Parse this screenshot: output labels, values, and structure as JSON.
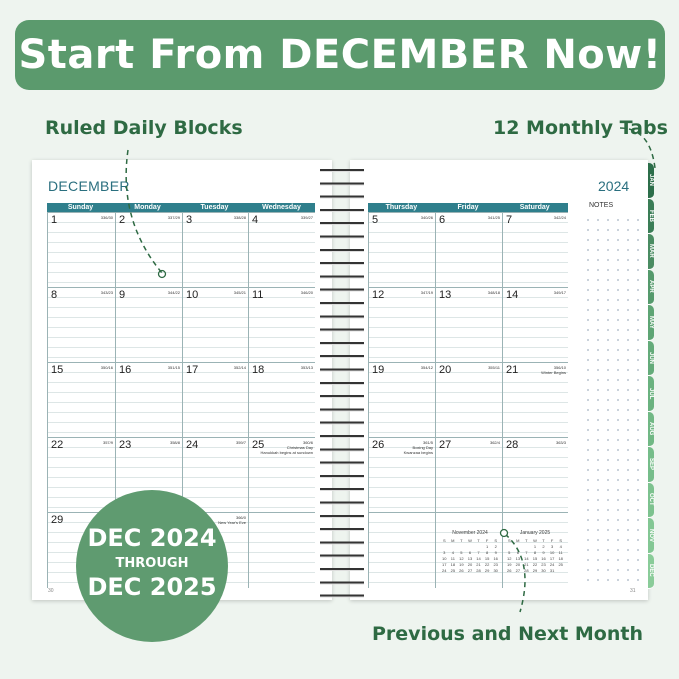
{
  "banner": "Start From DECEMBER Now!",
  "callouts": {
    "ruled": "Ruled Daily Blocks",
    "tabs": "12 Monthly Tabs",
    "months": "Previous and Next Month"
  },
  "planner": {
    "month": "DECEMBER",
    "year": "2024",
    "notes_label": "NOTES",
    "weekdays": [
      "Sunday",
      "Monday",
      "Tuesday",
      "Wednesday",
      "Thursday",
      "Friday",
      "Saturday"
    ],
    "weeks": [
      [
        {
          "d": "1",
          "doy": "336/30"
        },
        {
          "d": "2",
          "doy": "337/29"
        },
        {
          "d": "3",
          "doy": "338/28"
        },
        {
          "d": "4",
          "doy": "339/27"
        },
        {
          "d": "5",
          "doy": "340/26"
        },
        {
          "d": "6",
          "doy": "341/25"
        },
        {
          "d": "7",
          "doy": "342/24"
        }
      ],
      [
        {
          "d": "8",
          "doy": "343/23"
        },
        {
          "d": "9",
          "doy": "344/22"
        },
        {
          "d": "10",
          "doy": "345/21"
        },
        {
          "d": "11",
          "doy": "346/20"
        },
        {
          "d": "12",
          "doy": "347/19"
        },
        {
          "d": "13",
          "doy": "348/18"
        },
        {
          "d": "14",
          "doy": "349/17"
        }
      ],
      [
        {
          "d": "15",
          "doy": "350/16"
        },
        {
          "d": "16",
          "doy": "351/15"
        },
        {
          "d": "17",
          "doy": "352/14"
        },
        {
          "d": "18",
          "doy": "353/13"
        },
        {
          "d": "19",
          "doy": "354/12"
        },
        {
          "d": "20",
          "doy": "355/11"
        },
        {
          "d": "21",
          "doy": "356/10",
          "note": "Winter Begins"
        }
      ],
      [
        {
          "d": "22",
          "doy": "357/9"
        },
        {
          "d": "23",
          "doy": "358/8"
        },
        {
          "d": "24",
          "doy": "359/7"
        },
        {
          "d": "25",
          "doy": "360/6",
          "note": "Christmas Day\nHanukkah begins at sundown"
        },
        {
          "d": "26",
          "doy": "361/5",
          "note": "Boxing Day\nKwanzaa begins"
        },
        {
          "d": "27",
          "doy": "362/4"
        },
        {
          "d": "28",
          "doy": "363/3"
        }
      ],
      [
        {
          "d": "29"
        },
        {},
        {
          "doy": "366/0",
          "note": "New Year's Eve"
        },
        {},
        {},
        {},
        {}
      ]
    ],
    "tabs": [
      "JAN",
      "FEB",
      "MAR",
      "APR",
      "MAY",
      "JUN",
      "JUL",
      "AUG",
      "SEP",
      "OCT",
      "NOV",
      "DEC"
    ],
    "tab_colors": [
      "#2c6e4a",
      "#3a7d56",
      "#4a8c62",
      "#559a6c",
      "#5ea574",
      "#64ab7a",
      "#6ab27f",
      "#71b885",
      "#76bd8a",
      "#7dc28f",
      "#83c794",
      "#8acc99"
    ],
    "page_numbers": [
      "30",
      "31"
    ],
    "mini_calendars": [
      {
        "title": "November 2024",
        "head": [
          "S",
          "M",
          "T",
          "W",
          "T",
          "F",
          "S"
        ],
        "rows": [
          [
            "",
            "",
            "",
            "",
            "",
            "1",
            "2"
          ],
          [
            "3",
            "4",
            "5",
            "6",
            "7",
            "8",
            "9"
          ],
          [
            "10",
            "11",
            "12",
            "13",
            "14",
            "15",
            "16"
          ],
          [
            "17",
            "18",
            "19",
            "20",
            "21",
            "22",
            "23"
          ],
          [
            "24",
            "25",
            "26",
            "27",
            "28",
            "29",
            "30"
          ]
        ]
      },
      {
        "title": "January 2025",
        "head": [
          "S",
          "M",
          "T",
          "W",
          "T",
          "F",
          "S"
        ],
        "rows": [
          [
            "",
            "",
            "",
            "1",
            "2",
            "3",
            "4"
          ],
          [
            "5",
            "6",
            "7",
            "8",
            "9",
            "10",
            "11"
          ],
          [
            "12",
            "13",
            "14",
            "15",
            "16",
            "17",
            "18"
          ],
          [
            "19",
            "20",
            "21",
            "22",
            "23",
            "24",
            "25"
          ],
          [
            "26",
            "27",
            "28",
            "29",
            "30",
            "31",
            ""
          ]
        ]
      }
    ]
  },
  "badge": {
    "line1": "DEC 2024",
    "line2": "THROUGH",
    "line3": "DEC 2025"
  },
  "colors": {
    "brand_green": "#5b9a6d",
    "header_teal": "#2f7f8c",
    "callout_text": "#2e6a43"
  }
}
